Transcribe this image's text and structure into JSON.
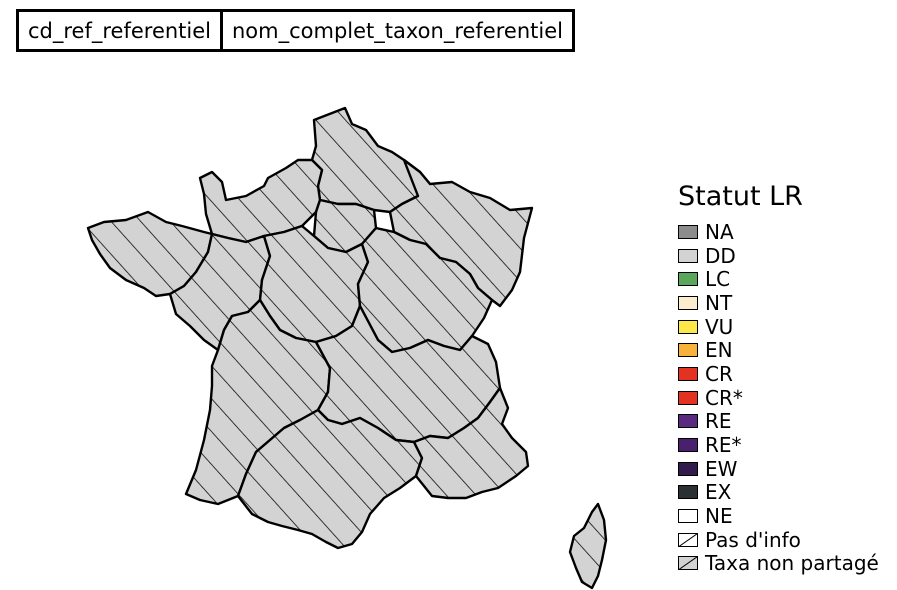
{
  "header": {
    "columns": [
      "cd_ref_referentiel",
      "nom_complet_taxon_referentiel"
    ]
  },
  "map": {
    "fill_color": "#d3d3d3",
    "hatch": true,
    "region_status": "Taxa non partagé"
  },
  "legend": {
    "title": "Statut LR",
    "items": [
      {
        "label": "NA",
        "color": "#8c8c8c"
      },
      {
        "label": "DD",
        "color": "#d3d3d3"
      },
      {
        "label": "LC",
        "color": "#5aa65a"
      },
      {
        "label": "NT",
        "color": "#fbedce"
      },
      {
        "label": "VU",
        "color": "#fde84a"
      },
      {
        "label": "EN",
        "color": "#f8b13b"
      },
      {
        "label": "CR",
        "color": "#e3321f"
      },
      {
        "label": "CR*",
        "color": "#e3321f"
      },
      {
        "label": "RE",
        "color": "#5a2a80"
      },
      {
        "label": "RE*",
        "color": "#4a1f6e"
      },
      {
        "label": "EW",
        "color": "#331a4c"
      },
      {
        "label": "EX",
        "color": "#2b3033"
      },
      {
        "label": "NE",
        "color": "#ffffff"
      },
      {
        "label": "Pas d'info",
        "color": "#ffffff",
        "hatched": true
      },
      {
        "label": "Taxa non partagé",
        "color": "#d3d3d3",
        "hatched": true
      }
    ]
  }
}
